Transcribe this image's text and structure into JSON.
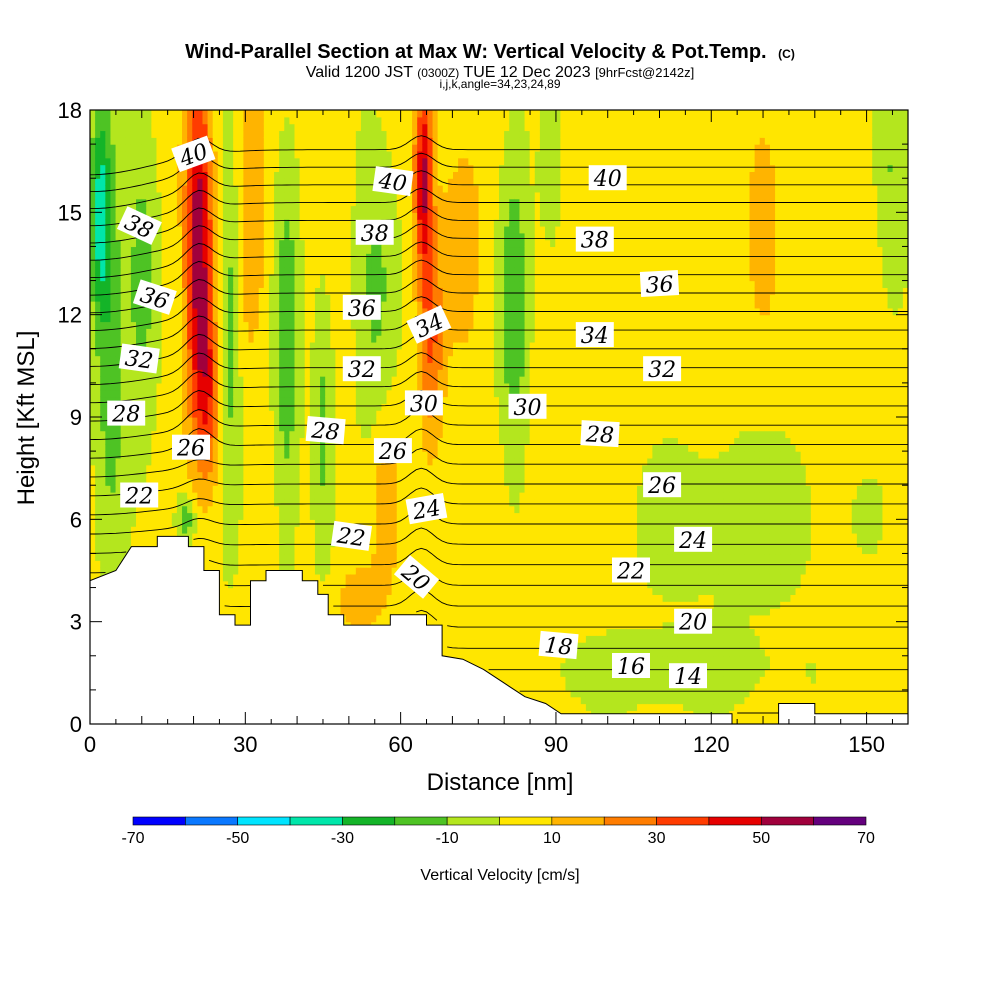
{
  "chart_data": {
    "type": "heatmap",
    "title": "Wind-Parallel Section at Max W: Vertical Velocity & Pot.Temp.",
    "title_mark": "(C)",
    "subtitle_parts": [
      "Valid 1200 JST",
      "(0300Z)",
      "TUE 12 Dec 2023",
      "[9hrFcst@2142z]"
    ],
    "subtitle3": "i,j,k,angle=34,23,24,89",
    "xlabel": "Distance [nm]",
    "ylabel": "Height [Kft MSL]",
    "xlim": [
      0,
      158
    ],
    "ylim": [
      0,
      18
    ],
    "xticks": [
      "0",
      "30",
      "60",
      "90",
      "120",
      "150"
    ],
    "yticks": [
      "0",
      "3",
      "6",
      "9",
      "12",
      "15",
      "18"
    ],
    "colorbar": {
      "label": "Vertical Velocity [cm/s]",
      "levels": [
        -70,
        -60,
        -50,
        -40,
        -30,
        -20,
        -10,
        0,
        10,
        20,
        30,
        40,
        50,
        60,
        70
      ],
      "tick_labels": [
        "-70",
        "-50",
        "-30",
        "-10",
        "10",
        "30",
        "50",
        "70"
      ],
      "colors": [
        "#0000ff",
        "#0a78ff",
        "#00e4ff",
        "#00e6aa",
        "#14b428",
        "#4ec324",
        "#b4e61e",
        "#ffe600",
        "#ffb400",
        "#ff7d00",
        "#ff3c00",
        "#e60000",
        "#a0003c",
        "#64007d"
      ]
    },
    "terrain_top_kft": [
      [
        0,
        4.2
      ],
      [
        5,
        4.5
      ],
      [
        8,
        5.2
      ],
      [
        13,
        5.2
      ],
      [
        13,
        5.5
      ],
      [
        19,
        5.5
      ],
      [
        19,
        5.2
      ],
      [
        22,
        5.2
      ],
      [
        22,
        4.5
      ],
      [
        25,
        4.5
      ],
      [
        25,
        3.2
      ],
      [
        28,
        3.2
      ],
      [
        28,
        2.9
      ],
      [
        31,
        2.9
      ],
      [
        31,
        4.2
      ],
      [
        34,
        4.2
      ],
      [
        34,
        4.5
      ],
      [
        41,
        4.5
      ],
      [
        41,
        4.2
      ],
      [
        44,
        4.2
      ],
      [
        44,
        3.8
      ],
      [
        46,
        3.8
      ],
      [
        46,
        3.2
      ],
      [
        49,
        3.2
      ],
      [
        49,
        2.9
      ],
      [
        58,
        2.9
      ],
      [
        58,
        3.2
      ],
      [
        65,
        3.2
      ],
      [
        65,
        2.9
      ],
      [
        68,
        2.9
      ],
      [
        68,
        2.0
      ],
      [
        72,
        1.9
      ],
      [
        76,
        1.6
      ],
      [
        80,
        1.2
      ],
      [
        84,
        0.8
      ],
      [
        88,
        0.6
      ],
      [
        91,
        0.3
      ],
      [
        124,
        0.3
      ],
      [
        124,
        0
      ],
      [
        133,
        0
      ],
      [
        133,
        0.6
      ],
      [
        140,
        0.6
      ],
      [
        140,
        0.3
      ],
      [
        158,
        0.3
      ]
    ],
    "theta_contour_interval": 1,
    "theta_labels": [
      {
        "text": "40",
        "x": 20,
        "y": 16.7,
        "rotate": -20
      },
      {
        "text": "38",
        "x": 9.5,
        "y": 14.6,
        "rotate": 25
      },
      {
        "text": "36",
        "x": 12.5,
        "y": 12.5,
        "rotate": 18
      },
      {
        "text": "32",
        "x": 9.5,
        "y": 10.7,
        "rotate": 8
      },
      {
        "text": "28",
        "x": 7,
        "y": 9.1,
        "rotate": 0
      },
      {
        "text": "26",
        "x": 19.5,
        "y": 8.1,
        "rotate": 0
      },
      {
        "text": "22",
        "x": 9.5,
        "y": 6.7,
        "rotate": 0
      },
      {
        "text": "40",
        "x": 58.5,
        "y": 15.9,
        "rotate": 8
      },
      {
        "text": "38",
        "x": 55,
        "y": 14.4,
        "rotate": 0
      },
      {
        "text": "36",
        "x": 52.5,
        "y": 12.2,
        "rotate": 0
      },
      {
        "text": "34",
        "x": 65.5,
        "y": 11.7,
        "rotate": -25
      },
      {
        "text": "32",
        "x": 52.5,
        "y": 10.4,
        "rotate": 0
      },
      {
        "text": "30",
        "x": 64.5,
        "y": 9.4,
        "rotate": 0
      },
      {
        "text": "28",
        "x": 45.5,
        "y": 8.6,
        "rotate": 5
      },
      {
        "text": "26",
        "x": 58.5,
        "y": 8.0,
        "rotate": 0
      },
      {
        "text": "24",
        "x": 65,
        "y": 6.3,
        "rotate": -10
      },
      {
        "text": "22",
        "x": 50.5,
        "y": 5.5,
        "rotate": 8
      },
      {
        "text": "20",
        "x": 63,
        "y": 4.3,
        "rotate": 40
      },
      {
        "text": "40",
        "x": 100,
        "y": 16.0,
        "rotate": 0
      },
      {
        "text": "38",
        "x": 97.5,
        "y": 14.2,
        "rotate": 0
      },
      {
        "text": "36",
        "x": 110,
        "y": 12.9,
        "rotate": -3
      },
      {
        "text": "34",
        "x": 97.5,
        "y": 11.4,
        "rotate": 0
      },
      {
        "text": "32",
        "x": 110.5,
        "y": 10.4,
        "rotate": 0
      },
      {
        "text": "30",
        "x": 84.5,
        "y": 9.3,
        "rotate": 0
      },
      {
        "text": "28",
        "x": 98.5,
        "y": 8.5,
        "rotate": 3
      },
      {
        "text": "26",
        "x": 110.5,
        "y": 7.0,
        "rotate": 0
      },
      {
        "text": "24",
        "x": 116.5,
        "y": 5.4,
        "rotate": 0
      },
      {
        "text": "22",
        "x": 104.5,
        "y": 4.5,
        "rotate": 0
      },
      {
        "text": "20",
        "x": 116.5,
        "y": 3.0,
        "rotate": 0
      },
      {
        "text": "18",
        "x": 90.5,
        "y": 2.3,
        "rotate": 5
      },
      {
        "text": "16",
        "x": 104.5,
        "y": 1.7,
        "rotate": 0
      },
      {
        "text": "14",
        "x": 115.5,
        "y": 1.4,
        "rotate": 0
      }
    ],
    "w_features": [
      {
        "x": 2,
        "y": 15,
        "sx": 2,
        "sy": 3,
        "amp": -35
      },
      {
        "x": 4,
        "y": 11,
        "sx": 3,
        "sy": 6,
        "amp": -20
      },
      {
        "x": 10,
        "y": 13,
        "sx": 3,
        "sy": 5,
        "amp": -18
      },
      {
        "x": 21,
        "y": 14,
        "sx": 2.6,
        "sy": 5,
        "amp": 55
      },
      {
        "x": 23,
        "y": 9.5,
        "sx": 2.5,
        "sy": 2.5,
        "amp": 25
      },
      {
        "x": 27,
        "y": 12,
        "sx": 2.2,
        "sy": 6,
        "amp": -20
      },
      {
        "x": 31,
        "y": 15,
        "sx": 3,
        "sy": 4,
        "amp": 16
      },
      {
        "x": 38,
        "y": 11,
        "sx": 2.5,
        "sy": 6,
        "amp": -20
      },
      {
        "x": 45,
        "y": 9,
        "sx": 2,
        "sy": 4,
        "amp": -16
      },
      {
        "x": 55,
        "y": 13,
        "sx": 4,
        "sy": 5,
        "amp": -15
      },
      {
        "x": 64.5,
        "y": 16,
        "sx": 1.8,
        "sy": 3,
        "amp": 48
      },
      {
        "x": 66,
        "y": 11,
        "sx": 2.2,
        "sy": 3,
        "amp": 25
      },
      {
        "x": 57,
        "y": 6.5,
        "sx": 2.5,
        "sy": 2.5,
        "amp": 14
      },
      {
        "x": 18.5,
        "y": 6,
        "sx": 2,
        "sy": 0.8,
        "amp": -22
      },
      {
        "x": 52,
        "y": 3.7,
        "sx": 4,
        "sy": 1,
        "amp": 14
      },
      {
        "x": 72,
        "y": 14,
        "sx": 4,
        "sy": 3,
        "amp": 13
      },
      {
        "x": 82,
        "y": 12,
        "sx": 3,
        "sy": 5,
        "amp": -22
      },
      {
        "x": 89,
        "y": 16,
        "sx": 2,
        "sy": 2,
        "amp": -14
      },
      {
        "x": 93,
        "y": 8,
        "sx": 10,
        "sy": 3,
        "amp": 6
      },
      {
        "x": 130,
        "y": 15,
        "sx": 3,
        "sy": 3,
        "amp": 12
      },
      {
        "x": 155,
        "y": 16,
        "sx": 3,
        "sy": 4,
        "amp": -14
      },
      {
        "x": 125,
        "y": 6,
        "sx": 25,
        "sy": 3,
        "amp": -8
      },
      {
        "x": 110,
        "y": 1.5,
        "sx": 25,
        "sy": 1.2,
        "amp": -9
      }
    ]
  }
}
